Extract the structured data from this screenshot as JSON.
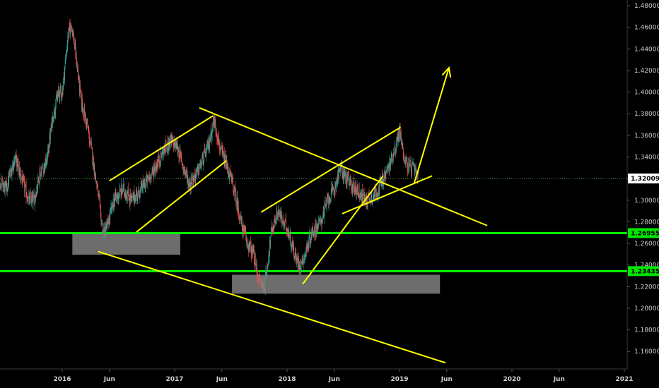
{
  "chart_data": {
    "type": "candlestick",
    "title": "",
    "instrument_note": "",
    "y_axis": {
      "min": 1.145,
      "max": 1.485,
      "ticks": [
        "1.48000",
        "1.46000",
        "1.44000",
        "1.42000",
        "1.40000",
        "1.38000",
        "1.36000",
        "1.34000",
        "1.32000",
        "1.30000",
        "1.28000",
        "1.26000",
        "1.24000",
        "1.22000",
        "1.20000",
        "1.18000",
        "1.16000"
      ],
      "tick_values": [
        1.48,
        1.46,
        1.44,
        1.42,
        1.4,
        1.38,
        1.36,
        1.34,
        1.32,
        1.3,
        1.28,
        1.26,
        1.24,
        1.22,
        1.2,
        1.18,
        1.16
      ]
    },
    "x_axis": {
      "ticks": [
        "2016",
        "Jun",
        "2017",
        "Jun",
        "2018",
        "Jun",
        "2019",
        "Jun",
        "2020",
        "Jun",
        "2021"
      ],
      "tick_values": [
        2016.0,
        2016.42,
        2017.0,
        2017.42,
        2018.0,
        2018.42,
        2019.0,
        2019.42,
        2020.0,
        2020.42,
        2021.0
      ],
      "min": 2015.08,
      "max": 2021.1
    },
    "price_tags": [
      {
        "label": "1.32009",
        "value": 1.32009,
        "bg": "#ffffff",
        "fg": "#000000"
      },
      {
        "label": "1.26955",
        "value": 1.26955,
        "bg": "#00e600",
        "fg": "#000000"
      },
      {
        "label": "1.23435",
        "value": 1.23435,
        "bg": "#00e600",
        "fg": "#000000"
      }
    ],
    "horizontal_levels": [
      {
        "name": "current-price",
        "value": 1.32009,
        "color": "#4caf50",
        "style": "dotted"
      },
      {
        "name": "support-1",
        "value": 1.26955,
        "color": "#00ff00",
        "style": "solid"
      },
      {
        "name": "support-2",
        "value": 1.23435,
        "color": "#00ff00",
        "style": "solid"
      }
    ],
    "zones": [
      {
        "name": "demand-zone-1",
        "x1": 2016.09,
        "x2": 2017.05,
        "y1": 1.2685,
        "y2": 1.2495
      },
      {
        "name": "demand-zone-2",
        "x1": 2017.51,
        "x2": 2019.36,
        "y1": 1.231,
        "y2": 1.2135
      }
    ],
    "trendlines": [
      {
        "name": "lower-channel-bottom",
        "x1": 2016.32,
        "y1": 1.2525,
        "x2": 2019.41,
        "y2": 1.1495
      },
      {
        "name": "upper-channel-top",
        "x1": 2017.22,
        "y1": 1.3855,
        "x2": 2019.78,
        "y2": 1.2765
      },
      {
        "name": "rise-1-top",
        "x1": 2016.42,
        "y1": 1.318,
        "x2": 2017.34,
        "y2": 1.378
      },
      {
        "name": "rise-1-bottom",
        "x1": 2016.66,
        "y1": 1.2705,
        "x2": 2017.46,
        "y2": 1.3365
      },
      {
        "name": "rise-2-top",
        "x1": 2017.77,
        "y1": 1.289,
        "x2": 2019.01,
        "y2": 1.3675
      },
      {
        "name": "rise-2-bottom",
        "x1": 2018.14,
        "y1": 1.2225,
        "x2": 2018.85,
        "y2": 1.322
      },
      {
        "name": "rise-3-bottom",
        "x1": 2018.49,
        "y1": 1.2875,
        "x2": 2019.29,
        "y2": 1.3225
      }
    ],
    "projection_arrow": {
      "x1": 2019.13,
      "y1": 1.3155,
      "x2": 2019.44,
      "y2": 1.4225,
      "color": "#ffff00"
    },
    "colors": {
      "background": "#000000",
      "up": "#26a69a",
      "down": "#ef5350",
      "annotation": "#ffff00",
      "zone": "#8c8c8c",
      "axis": "#d0d0d0"
    },
    "anchors": [
      [
        2015.08,
        1.225
      ],
      [
        2015.12,
        1.23
      ],
      [
        2015.2,
        1.285
      ],
      [
        2015.3,
        1.32
      ],
      [
        2015.4,
        1.325
      ],
      [
        2015.5,
        1.31
      ],
      [
        2015.58,
        1.34
      ],
      [
        2015.64,
        1.32
      ],
      [
        2015.7,
        1.3
      ],
      [
        2015.75,
        1.3
      ],
      [
        2015.8,
        1.325
      ],
      [
        2015.86,
        1.335
      ],
      [
        2015.92,
        1.38
      ],
      [
        2015.97,
        1.4
      ],
      [
        2016.0,
        1.4
      ],
      [
        2016.05,
        1.45
      ],
      [
        2016.08,
        1.465
      ],
      [
        2016.12,
        1.435
      ],
      [
        2016.17,
        1.39
      ],
      [
        2016.22,
        1.37
      ],
      [
        2016.27,
        1.34
      ],
      [
        2016.32,
        1.305
      ],
      [
        2016.36,
        1.27
      ],
      [
        2016.4,
        1.275
      ],
      [
        2016.46,
        1.3
      ],
      [
        2016.54,
        1.31
      ],
      [
        2016.62,
        1.3
      ],
      [
        2016.7,
        1.31
      ],
      [
        2016.8,
        1.325
      ],
      [
        2016.9,
        1.345
      ],
      [
        2016.96,
        1.355
      ],
      [
        2017.02,
        1.35
      ],
      [
        2017.08,
        1.33
      ],
      [
        2017.13,
        1.315
      ],
      [
        2017.2,
        1.325
      ],
      [
        2017.3,
        1.35
      ],
      [
        2017.35,
        1.375
      ],
      [
        2017.38,
        1.36
      ],
      [
        2017.41,
        1.345
      ],
      [
        2017.45,
        1.335
      ],
      [
        2017.5,
        1.32
      ],
      [
        2017.55,
        1.3
      ],
      [
        2017.6,
        1.275
      ],
      [
        2017.65,
        1.26
      ],
      [
        2017.7,
        1.25
      ],
      [
        2017.75,
        1.225
      ],
      [
        2017.8,
        1.22
      ],
      [
        2017.86,
        1.27
      ],
      [
        2017.92,
        1.29
      ],
      [
        2017.96,
        1.28
      ],
      [
        2018.0,
        1.275
      ],
      [
        2018.04,
        1.26
      ],
      [
        2018.08,
        1.245
      ],
      [
        2018.12,
        1.24
      ],
      [
        2018.16,
        1.25
      ],
      [
        2018.22,
        1.27
      ],
      [
        2018.3,
        1.28
      ],
      [
        2018.36,
        1.3
      ],
      [
        2018.42,
        1.31
      ],
      [
        2018.47,
        1.33
      ],
      [
        2018.5,
        1.325
      ],
      [
        2018.56,
        1.315
      ],
      [
        2018.62,
        1.31
      ],
      [
        2018.7,
        1.3
      ],
      [
        2018.78,
        1.305
      ],
      [
        2018.86,
        1.32
      ],
      [
        2018.92,
        1.335
      ],
      [
        2018.98,
        1.355
      ],
      [
        2019.0,
        1.365
      ],
      [
        2019.04,
        1.34
      ],
      [
        2019.08,
        1.33
      ],
      [
        2019.12,
        1.33
      ],
      [
        2019.17,
        1.32
      ]
    ]
  }
}
